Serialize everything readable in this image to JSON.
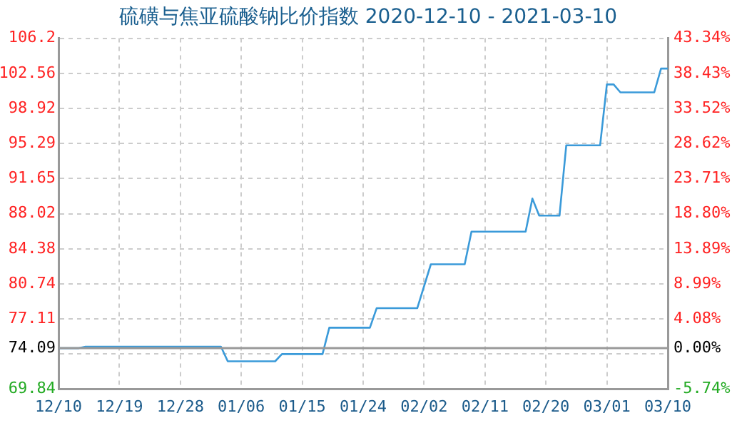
{
  "chart_data": {
    "type": "line",
    "title": "硫磺与焦亚硫酸钠比价指数 2020-12-10 - 2021-03-10",
    "x": [
      "2020-12-10",
      "2020-12-13",
      "2020-12-14",
      "2021-01-03",
      "2021-01-04",
      "2021-01-11",
      "2021-01-12",
      "2021-01-18",
      "2021-01-19",
      "2021-01-25",
      "2021-01-26",
      "2021-02-01",
      "2021-02-03",
      "2021-02-08",
      "2021-02-09",
      "2021-02-17",
      "2021-02-18",
      "2021-02-19",
      "2021-02-22",
      "2021-02-23",
      "2021-02-28",
      "2021-03-01",
      "2021-03-02",
      "2021-03-03",
      "2021-03-08",
      "2021-03-09",
      "2021-03-10"
    ],
    "series": [
      {
        "color": "#3a9ad9",
        "values": [
          74.09,
          74.09,
          74.24,
          74.24,
          72.73,
          72.73,
          73.48,
          73.48,
          76.21,
          76.21,
          78.24,
          78.24,
          82.78,
          82.78,
          86.16,
          86.16,
          89.59,
          87.82,
          87.82,
          95.1,
          95.1,
          101.41,
          101.41,
          100.59,
          100.59,
          103.06,
          103.06
        ]
      }
    ],
    "xlim": [
      "2020-12-10",
      "2021-03-10"
    ],
    "xticks": [
      {
        "value": "2020-12-10",
        "label": "12/10"
      },
      {
        "value": "2020-12-19",
        "label": "12/19"
      },
      {
        "value": "2020-12-28",
        "label": "12/28"
      },
      {
        "value": "2021-01-06",
        "label": "01/06"
      },
      {
        "value": "2021-01-15",
        "label": "01/15"
      },
      {
        "value": "2021-01-24",
        "label": "01/24"
      },
      {
        "value": "2021-02-02",
        "label": "02/02"
      },
      {
        "value": "2021-02-11",
        "label": "02/11"
      },
      {
        "value": "2021-02-20",
        "label": "02/20"
      },
      {
        "value": "2021-03-01",
        "label": "03/01"
      },
      {
        "value": "2021-03-10",
        "label": "03/10"
      }
    ],
    "ylim": [
      69.84,
      106.2
    ],
    "yticks": [
      69.84,
      {
        "value": 73.48,
        "label": null
      },
      74.09,
      77.11,
      80.74,
      84.38,
      88.02,
      91.65,
      95.29,
      98.92,
      102.56,
      106.2
    ],
    "y2lim": [
      -5.74,
      43.34
    ],
    "y2ticks": [
      {
        "value": -5.74,
        "label": "-5.74%"
      },
      {
        "value": 0,
        "label": "0.00%"
      },
      {
        "value": 4.08,
        "label": "4.08%"
      },
      {
        "value": 8.99,
        "label": "8.99%"
      },
      {
        "value": 13.89,
        "label": "13.89%"
      },
      {
        "value": 18.8,
        "label": "18.80%"
      },
      {
        "value": 23.71,
        "label": "23.71%"
      },
      {
        "value": 28.62,
        "label": "28.62%"
      },
      {
        "value": 33.52,
        "label": "33.52%"
      },
      {
        "value": 38.43,
        "label": "38.43%"
      },
      {
        "value": 43.34,
        "label": "43.34%"
      }
    ],
    "ref_lines": [
      {
        "axis": "y",
        "value": 74.09,
        "color": "#999999"
      }
    ],
    "grid": true,
    "legend": false,
    "marker": "none",
    "line_style": "solid"
  }
}
